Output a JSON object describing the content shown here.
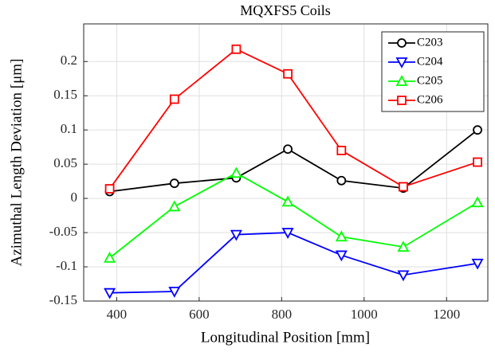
{
  "chart_data": {
    "type": "line",
    "title": "MQXFS5 Coils",
    "xlabel": "Longitudinal Position [mm]",
    "ylabel": "Azimuthal Length Deviation [μm]",
    "x": [
      383,
      540,
      690,
      815,
      945,
      1095,
      1275
    ],
    "series": [
      {
        "name": "C203",
        "color": "#000000",
        "marker": "circle",
        "values": [
          0.01,
          0.022,
          0.03,
          0.072,
          0.026,
          0.015,
          0.1
        ]
      },
      {
        "name": "C204",
        "color": "#0000ff",
        "marker": "triangle-down",
        "values": [
          -0.138,
          -0.136,
          -0.053,
          -0.05,
          -0.083,
          -0.112,
          -0.095
        ]
      },
      {
        "name": "C205",
        "color": "#00ff00",
        "marker": "triangle-up",
        "values": [
          -0.087,
          -0.012,
          0.037,
          -0.005,
          -0.056,
          -0.071,
          -0.006
        ]
      },
      {
        "name": "C206",
        "color": "#ff0000",
        "marker": "square",
        "values": [
          0.014,
          0.145,
          0.218,
          0.182,
          0.07,
          0.017,
          0.053
        ]
      }
    ],
    "xlim": [
      320,
      1300
    ],
    "xticks": [
      400,
      600,
      800,
      1000,
      1200
    ],
    "ylim": [
      -0.15,
      0.255
    ],
    "yticks": [
      -0.15,
      -0.1,
      -0.05,
      0,
      0.05,
      0.1,
      0.15,
      0.2
    ],
    "grid": true,
    "legend": "northeast"
  }
}
